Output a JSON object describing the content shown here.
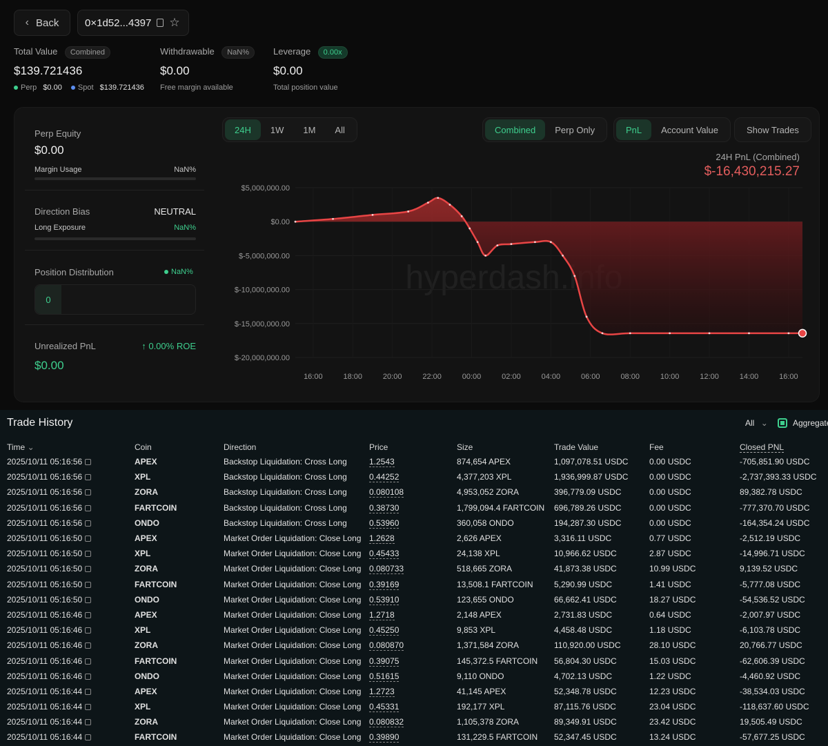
{
  "header": {
    "back_label": "Back",
    "address": "0×1d52...4397",
    "icons": [
      "chevron-left-icon",
      "copy-icon",
      "star-icon"
    ]
  },
  "stats": {
    "total_value": {
      "label": "Total Value",
      "badge": "Combined",
      "value": "$139.721436",
      "perp_label": "Perp",
      "perp_value": "$0.00",
      "spot_label": "Spot",
      "spot_value": "$139.721436"
    },
    "withdrawable": {
      "label": "Withdrawable",
      "badge": "NaN%",
      "value": "$0.00",
      "sub": "Free margin available"
    },
    "leverage": {
      "label": "Leverage",
      "badge": "0.00x",
      "value": "$0.00",
      "sub": "Total position value"
    }
  },
  "left_panel": {
    "perp_equity_label": "Perp Equity",
    "perp_equity_value": "$0.00",
    "margin_usage_label": "Margin Usage",
    "margin_usage_value": "NaN%",
    "direction_bias_label": "Direction Bias",
    "direction_bias_value": "NEUTRAL",
    "long_exposure_label": "Long Exposure",
    "long_exposure_value": "NaN%",
    "position_distribution_label": "Position Distribution",
    "position_distribution_value": "NaN%",
    "position_count": "0",
    "unrealized_label": "Unrealized PnL",
    "roe_value": "0.00% ROE",
    "unrealized_value": "$0.00"
  },
  "chart_controls": {
    "ranges": [
      "24H",
      "1W",
      "1M",
      "All"
    ],
    "active_range": "24H",
    "modes": [
      "Combined",
      "Perp Only"
    ],
    "active_mode": "Combined",
    "metrics": [
      "PnL",
      "Account Value"
    ],
    "active_metric": "PnL",
    "show_trades": "Show Trades",
    "summary_label": "24H PnL (Combined)",
    "summary_value": "$-16,430,215.27",
    "watermark": "hyperdash.info"
  },
  "chart_data": {
    "type": "area",
    "title": "24H PnL (Combined)",
    "ytick_labels": [
      "$5,000,000.00",
      "$0.00",
      "$-5,000,000.00",
      "$-10,000,000.00",
      "$-15,000,000.00",
      "$-20,000,000.00"
    ],
    "yticks": [
      5000000,
      0,
      -5000000,
      -10000000,
      -15000000,
      -20000000
    ],
    "ylim": [
      -20000000,
      5000000
    ],
    "xtick_labels": [
      "16:00",
      "18:00",
      "20:00",
      "22:00",
      "00:00",
      "02:00",
      "04:00",
      "06:00",
      "08:00",
      "10:00",
      "12:00",
      "14:00",
      "16:00"
    ],
    "xlim_hours": [
      15.1,
      40.7
    ],
    "hours": [
      15.1,
      17.0,
      19.0,
      20.8,
      21.8,
      22.3,
      22.9,
      23.5,
      23.9,
      24.3,
      24.7,
      25.3,
      26.0,
      27.2,
      28.0,
      28.6,
      29.2,
      29.8,
      30.6,
      32.0,
      34.0,
      36.0,
      38.0,
      40.0,
      40.7
    ],
    "values": [
      0,
      400000,
      1000000,
      1500000,
      2800000,
      3500000,
      2500000,
      800000,
      -1000000,
      -3000000,
      -5000000,
      -3500000,
      -3300000,
      -3000000,
      -3000000,
      -5000000,
      -8000000,
      -14000000,
      -16430215,
      -16430215,
      -16430215,
      -16430215,
      -16430215,
      -16430215,
      -16430215
    ]
  },
  "trade_history": {
    "title": "Trade History",
    "filter_value": "All",
    "aggregate_label": "Aggregate",
    "columns": [
      "Time",
      "Coin",
      "Direction",
      "Price",
      "Size",
      "Trade Value",
      "Fee",
      "Closed PNL"
    ],
    "rows": [
      [
        "2025/10/11 05:16:56",
        "APEX",
        "Backstop Liquidation: Cross Long",
        "1.2543",
        "874,654 APEX",
        "1,097,078.51 USDC",
        "0.00 USDC",
        "-705,851.90 USDC"
      ],
      [
        "2025/10/11 05:16:56",
        "XPL",
        "Backstop Liquidation: Cross Long",
        "0.44252",
        "4,377,203 XPL",
        "1,936,999.87 USDC",
        "0.00 USDC",
        "-2,737,393.33 USDC"
      ],
      [
        "2025/10/11 05:16:56",
        "ZORA",
        "Backstop Liquidation: Cross Long",
        "0.080108",
        "4,953,052 ZORA",
        "396,779.09 USDC",
        "0.00 USDC",
        "89,382.78 USDC"
      ],
      [
        "2025/10/11 05:16:56",
        "FARTCOIN",
        "Backstop Liquidation: Cross Long",
        "0.38730",
        "1,799,094.4 FARTCOIN",
        "696,789.26 USDC",
        "0.00 USDC",
        "-777,370.70 USDC"
      ],
      [
        "2025/10/11 05:16:56",
        "ONDO",
        "Backstop Liquidation: Cross Long",
        "0.53960",
        "360,058 ONDO",
        "194,287.30 USDC",
        "0.00 USDC",
        "-164,354.24 USDC"
      ],
      [
        "2025/10/11 05:16:50",
        "APEX",
        "Market Order Liquidation: Close Long",
        "1.2628",
        "2,626 APEX",
        "3,316.11 USDC",
        "0.77 USDC",
        "-2,512.19 USDC"
      ],
      [
        "2025/10/11 05:16:50",
        "XPL",
        "Market Order Liquidation: Close Long",
        "0.45433",
        "24,138 XPL",
        "10,966.62 USDC",
        "2.87 USDC",
        "-14,996.71 USDC"
      ],
      [
        "2025/10/11 05:16:50",
        "ZORA",
        "Market Order Liquidation: Close Long",
        "0.080733",
        "518,665 ZORA",
        "41,873.38 USDC",
        "10.99 USDC",
        "9,139.52 USDC"
      ],
      [
        "2025/10/11 05:16:50",
        "FARTCOIN",
        "Market Order Liquidation: Close Long",
        "0.39169",
        "13,508.1 FARTCOIN",
        "5,290.99 USDC",
        "1.41 USDC",
        "-5,777.08 USDC"
      ],
      [
        "2025/10/11 05:16:50",
        "ONDO",
        "Market Order Liquidation: Close Long",
        "0.53910",
        "123,655 ONDO",
        "66,662.41 USDC",
        "18.27 USDC",
        "-54,536.52 USDC"
      ],
      [
        "2025/10/11 05:16:46",
        "APEX",
        "Market Order Liquidation: Close Long",
        "1.2718",
        "2,148 APEX",
        "2,731.83 USDC",
        "0.64 USDC",
        "-2,007.97 USDC"
      ],
      [
        "2025/10/11 05:16:46",
        "XPL",
        "Market Order Liquidation: Close Long",
        "0.45250",
        "9,853 XPL",
        "4,458.48 USDC",
        "1.18 USDC",
        "-6,103.78 USDC"
      ],
      [
        "2025/10/11 05:16:46",
        "ZORA",
        "Market Order Liquidation: Close Long",
        "0.080870",
        "1,371,584 ZORA",
        "110,920.00 USDC",
        "28.10 USDC",
        "20,766.77 USDC"
      ],
      [
        "2025/10/11 05:16:46",
        "FARTCOIN",
        "Market Order Liquidation: Close Long",
        "0.39075",
        "145,372.5 FARTCOIN",
        "56,804.30 USDC",
        "15.03 USDC",
        "-62,606.39 USDC"
      ],
      [
        "2025/10/11 05:16:46",
        "ONDO",
        "Market Order Liquidation: Close Long",
        "0.51615",
        "9,110 ONDO",
        "4,702.13 USDC",
        "1.22 USDC",
        "-4,460.92 USDC"
      ],
      [
        "2025/10/11 05:16:44",
        "APEX",
        "Market Order Liquidation: Close Long",
        "1.2723",
        "41,145 APEX",
        "52,348.78 USDC",
        "12.23 USDC",
        "-38,534.03 USDC"
      ],
      [
        "2025/10/11 05:16:44",
        "XPL",
        "Market Order Liquidation: Close Long",
        "0.45331",
        "192,177 XPL",
        "87,115.76 USDC",
        "23.04 USDC",
        "-118,637.60 USDC"
      ],
      [
        "2025/10/11 05:16:44",
        "ZORA",
        "Market Order Liquidation: Close Long",
        "0.080832",
        "1,105,378 ZORA",
        "89,349.91 USDC",
        "23.42 USDC",
        "19,505.49 USDC"
      ],
      [
        "2025/10/11 05:16:44",
        "FARTCOIN",
        "Market Order Liquidation: Close Long",
        "0.39890",
        "131,229.5 FARTCOIN",
        "52,347.45 USDC",
        "13.24 USDC",
        "-57,677.25 USDC"
      ]
    ]
  }
}
